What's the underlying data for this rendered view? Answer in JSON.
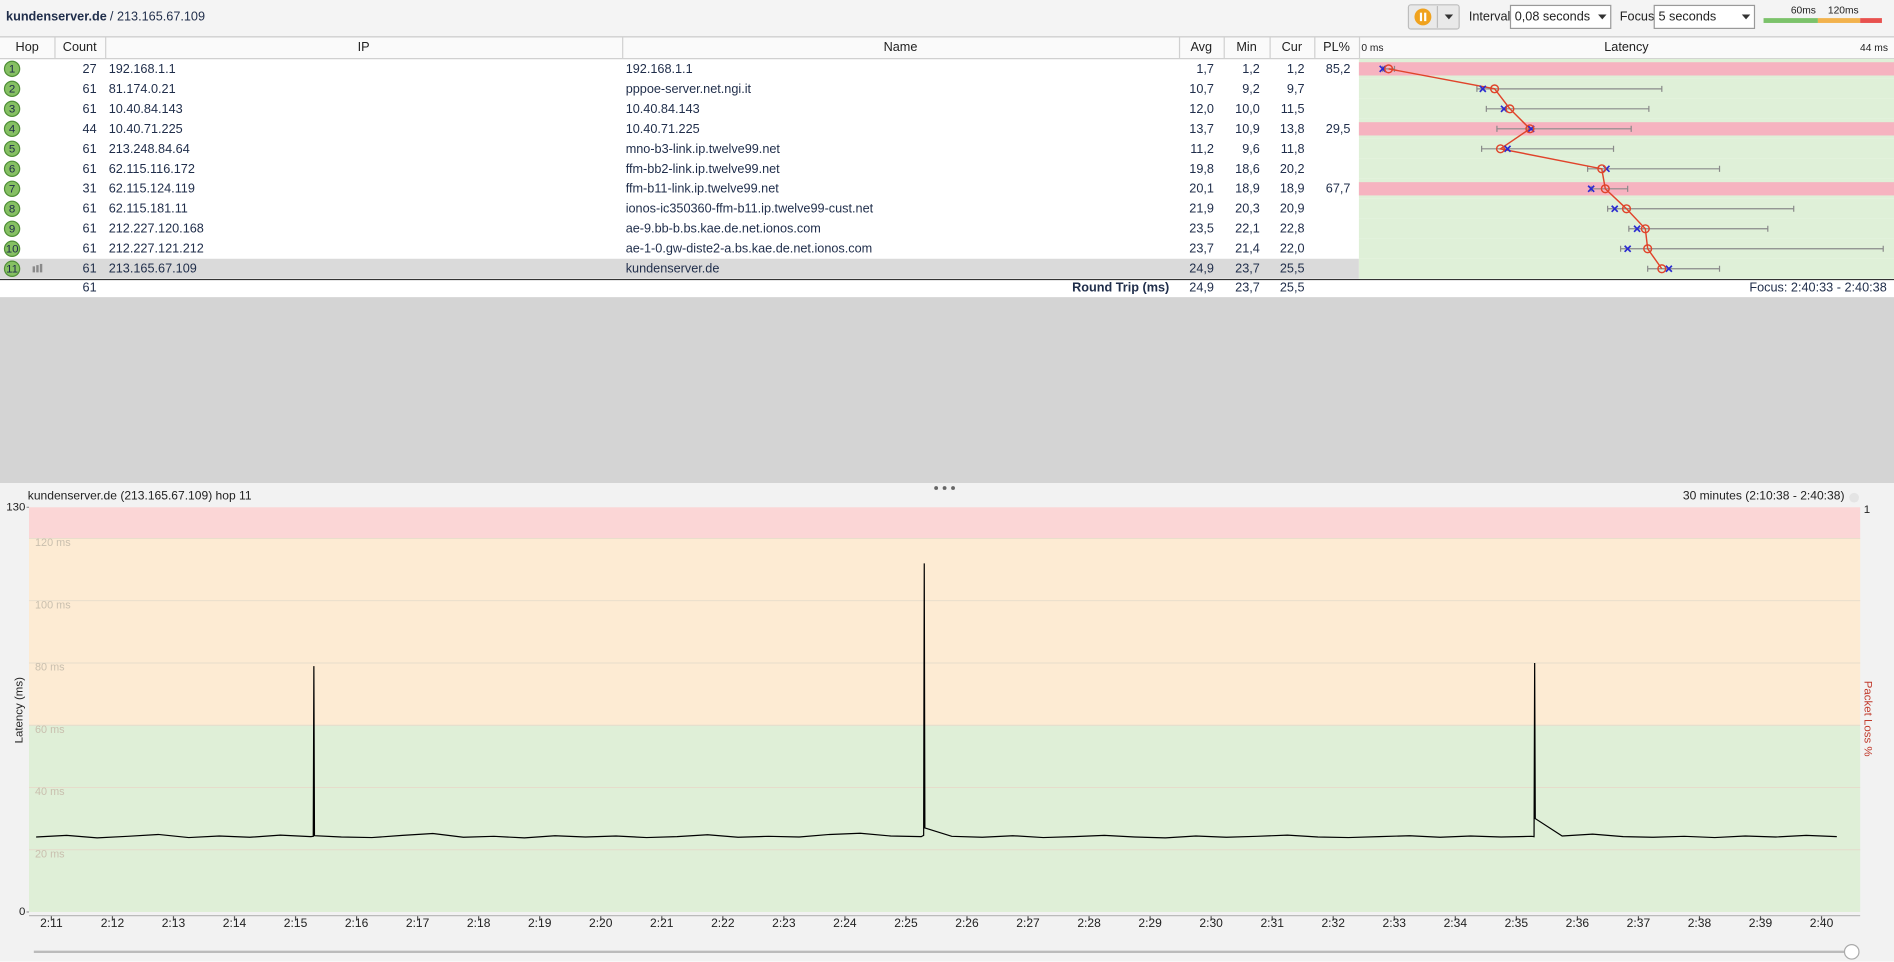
{
  "toolbar": {
    "host": "kundenserver.de",
    "ip": "/ 213.165.67.109",
    "interval_label": "Interval",
    "interval": "0,08 seconds",
    "focus_label": "Focus",
    "focus": "5 seconds",
    "legend": [
      "60ms",
      "120ms"
    ]
  },
  "table": {
    "columns": [
      "Hop",
      "Count",
      "IP",
      "Name",
      "Avg",
      "Min",
      "Cur",
      "PL%",
      "Latency"
    ],
    "rows": [
      {
        "hop": "1",
        "count": "27",
        "ip": "192.168.1.1",
        "name": "192.168.1.1",
        "avg": "1,7",
        "min": "1,2",
        "cur": "1,2",
        "pl": "85,2"
      },
      {
        "hop": "2",
        "count": "61",
        "ip": "81.174.0.21",
        "name": "pppoe-server.net.ngi.it",
        "avg": "10,7",
        "min": "9,2",
        "cur": "9,7",
        "pl": null
      },
      {
        "hop": "3",
        "count": "61",
        "ip": "10.40.84.143",
        "name": "10.40.84.143",
        "avg": "12,0",
        "min": "10,0",
        "cur": "11,5",
        "pl": null
      },
      {
        "hop": "4",
        "count": "44",
        "ip": "10.40.71.225",
        "name": "10.40.71.225",
        "avg": "13,7",
        "min": "10,9",
        "cur": "13,8",
        "pl": "29,5"
      },
      {
        "hop": "5",
        "count": "61",
        "ip": "213.248.84.64",
        "name": "mno-b3-link.ip.twelve99.net",
        "avg": "11,2",
        "min": "9,6",
        "cur": "11,8",
        "pl": null
      },
      {
        "hop": "6",
        "count": "61",
        "ip": "62.115.116.172",
        "name": "ffm-bb2-link.ip.twelve99.net",
        "avg": "19,8",
        "min": "18,6",
        "cur": "20,2",
        "pl": null
      },
      {
        "hop": "7",
        "count": "31",
        "ip": "62.115.124.119",
        "name": "ffm-b11-link.ip.twelve99.net",
        "avg": "20,1",
        "min": "18,9",
        "cur": "18,9",
        "pl": "67,7"
      },
      {
        "hop": "8",
        "count": "61",
        "ip": "62.115.181.11",
        "name": "ionos-ic350360-ffm-b11.ip.twelve99-cust.net",
        "avg": "21,9",
        "min": "20,3",
        "cur": "20,9",
        "pl": null
      },
      {
        "hop": "9",
        "count": "61",
        "ip": "212.227.120.168",
        "name": "ae-9.bb-b.bs.kae.de.net.ionos.com",
        "avg": "23,5",
        "min": "22,1",
        "cur": "22,8",
        "pl": null
      },
      {
        "hop": "10",
        "count": "61",
        "ip": "212.227.121.212",
        "name": "ae-1-0.gw-diste2-a.bs.kae.de.net.ionos.com",
        "avg": "23,7",
        "min": "21,4",
        "cur": "22,0",
        "pl": null
      },
      {
        "hop": "11",
        "count": "61",
        "ip": "213.165.67.109",
        "name": "kundenserver.de",
        "avg": "24,9",
        "min": "23,7",
        "cur": "25,5",
        "pl": null
      }
    ],
    "summary": {
      "count": "61",
      "label": "Round Trip (ms)",
      "avg": "24,9",
      "min": "23,7",
      "cur": "25,5",
      "focus": "Focus: 2:40:33 - 2:40:38"
    }
  },
  "latency_graph": {
    "xlim": [
      0,
      44
    ],
    "xticks": [
      {
        "value": 0,
        "label": "0 ms"
      },
      {
        "value": 44,
        "label": "44 ms"
      }
    ],
    "avg": [
      1.7,
      10.7,
      12.0,
      13.7,
      11.2,
      19.8,
      20.1,
      21.9,
      23.5,
      23.7,
      24.9
    ],
    "min": [
      1.2,
      9.2,
      10.0,
      10.9,
      9.6,
      18.6,
      18.9,
      20.3,
      22.1,
      21.4,
      23.7
    ],
    "max": [
      2.2,
      24.9,
      23.8,
      22.3,
      20.8,
      29.8,
      22.0,
      36.1,
      33.9,
      43.7,
      29.8
    ],
    "cur": [
      1.2,
      9.7,
      11.5,
      13.8,
      11.8,
      20.2,
      18.9,
      20.9,
      22.8,
      22.0,
      25.5
    ],
    "line_color": "#e0442b",
    "cur_color": "#2b2bd0",
    "range_color": "#8a8a8a",
    "ok_color": "#dff0d8",
    "loss_color": "#f6b3c0"
  },
  "chart_data": {
    "type": "line",
    "title": "kundenserver.de (213.165.67.109) hop 11",
    "subtitle": "30 minutes (2:10:38 - 2:40:38)",
    "y_label": "Latency (ms)",
    "y2_label": "Packet Loss %",
    "color": "#000000",
    "xlim": [
      10.633,
      40.633
    ],
    "xticks": [
      {
        "value": 11,
        "label": "2:11"
      },
      {
        "value": 12,
        "label": "2:12"
      },
      {
        "value": 13,
        "label": "2:13"
      },
      {
        "value": 14,
        "label": "2:14"
      },
      {
        "value": 15,
        "label": "2:15"
      },
      {
        "value": 16,
        "label": "2:16"
      },
      {
        "value": 17,
        "label": "2:17"
      },
      {
        "value": 18,
        "label": "2:18"
      },
      {
        "value": 19,
        "label": "2:19"
      },
      {
        "value": 20,
        "label": "2:20"
      },
      {
        "value": 21,
        "label": "2:21"
      },
      {
        "value": 22,
        "label": "2:22"
      },
      {
        "value": 23,
        "label": "2:23"
      },
      {
        "value": 24,
        "label": "2:24"
      },
      {
        "value": 25,
        "label": "2:25"
      },
      {
        "value": 26,
        "label": "2:26"
      },
      {
        "value": 27,
        "label": "2:27"
      },
      {
        "value": 28,
        "label": "2:28"
      },
      {
        "value": 29,
        "label": "2:29"
      },
      {
        "value": 30,
        "label": "2:30"
      },
      {
        "value": 31,
        "label": "2:31"
      },
      {
        "value": 32,
        "label": "2:32"
      },
      {
        "value": 33,
        "label": "2:33"
      },
      {
        "value": 34,
        "label": "2:34"
      },
      {
        "value": 35,
        "label": "2:35"
      },
      {
        "value": 36,
        "label": "2:36"
      },
      {
        "value": 37,
        "label": "2:37"
      },
      {
        "value": 38,
        "label": "2:38"
      },
      {
        "value": 39,
        "label": "2:39"
      },
      {
        "value": 40,
        "label": "2:40"
      }
    ],
    "ylim": [
      0,
      130
    ],
    "yticks": [
      0,
      {
        "value": 20,
        "label": "20 ms"
      },
      {
        "value": 40,
        "label": "40 ms"
      },
      {
        "value": 60,
        "label": "60 ms"
      },
      {
        "value": 80,
        "label": "80 ms"
      },
      {
        "value": 100,
        "label": "100 ms"
      },
      {
        "value": 120,
        "label": "120 ms"
      },
      130
    ],
    "y2lim": [
      0,
      1
    ],
    "y2ticks": [
      1
    ],
    "zones": [
      {
        "from": 0,
        "to": 60,
        "color": "#dfefd7"
      },
      {
        "from": 60,
        "to": 120,
        "color": "#fdebd3"
      },
      {
        "from": 120,
        "to": 130,
        "color": "#fbd6d6"
      }
    ],
    "x": [
      10.75,
      11.25,
      11.75,
      12.25,
      12.75,
      13.25,
      13.75,
      14.25,
      14.75,
      15.25,
      15.29,
      15.3,
      15.31,
      15.75,
      16.25,
      16.75,
      17.25,
      17.75,
      18.25,
      18.75,
      19.25,
      19.75,
      20.25,
      20.75,
      21.25,
      21.75,
      22.25,
      22.75,
      23.25,
      23.75,
      24.25,
      24.75,
      25.25,
      25.29,
      25.3,
      25.31,
      25.75,
      26.25,
      26.75,
      27.25,
      27.75,
      28.25,
      28.75,
      29.25,
      29.75,
      30.25,
      30.75,
      31.25,
      31.75,
      32.25,
      32.75,
      33.25,
      33.75,
      34.25,
      34.75,
      35.25,
      35.29,
      35.3,
      35.31,
      35.75,
      36.25,
      36.75,
      37.25,
      37.75,
      38.25,
      38.75,
      39.25,
      39.75,
      40.25
    ],
    "values": [
      24.1,
      24.6,
      23.8,
      24.3,
      24.9,
      23.9,
      24.4,
      24.0,
      24.7,
      24.2,
      24.3,
      79,
      24.5,
      24.1,
      23.9,
      24.6,
      25.2,
      24.0,
      24.3,
      23.8,
      24.5,
      24.1,
      24.4,
      23.9,
      24.2,
      24.8,
      24.0,
      24.3,
      24.1,
      24.9,
      25.3,
      24.4,
      24.2,
      24.6,
      112,
      27,
      24.3,
      24.0,
      24.5,
      23.9,
      24.2,
      24.6,
      24.1,
      23.8,
      24.4,
      24.0,
      24.3,
      24.7,
      24.1,
      23.9,
      24.2,
      24.5,
      24.0,
      24.4,
      24.1,
      24.3,
      24.2,
      80,
      30,
      24.4,
      25.0,
      24.2,
      24.0,
      24.3,
      23.9,
      24.4,
      24.1,
      24.6,
      24.2
    ]
  }
}
